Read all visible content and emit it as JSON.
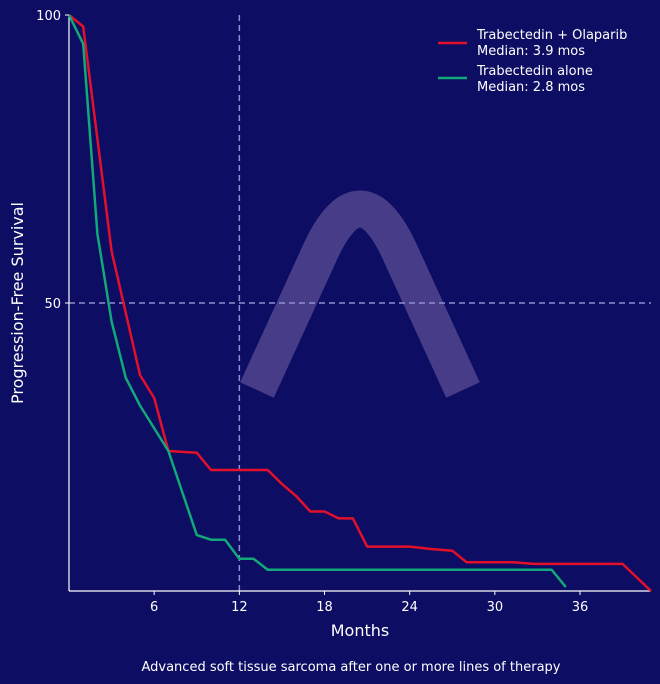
{
  "chart_data": {
    "type": "line",
    "title": "",
    "xlabel": "Months",
    "ylabel": "Progression-Free Survival",
    "caption": "Advanced soft tissue sarcoma after one or more lines of therapy",
    "xlim": [
      0,
      41
    ],
    "ylim": [
      0,
      100
    ],
    "xticks": [
      6,
      12,
      18,
      24,
      30,
      36
    ],
    "yticks": [
      50,
      100
    ],
    "grid": false,
    "reference_lines": {
      "x": 12,
      "y": 50
    },
    "legend_position": "top-right",
    "background": "#0c0d63",
    "series": [
      {
        "name": "Trabectedin + Olaparib",
        "median_label": "Median: 3.9 mos",
        "color": "#e3102b",
        "x": [
          0,
          1,
          3,
          5,
          6,
          7,
          9,
          10,
          14,
          15,
          16,
          17,
          18,
          19,
          20,
          21,
          24,
          25.5,
          27,
          28,
          31.3,
          32.7,
          39,
          41
        ],
        "y": [
          100,
          98,
          59,
          37.5,
          33.5,
          24.3,
          24,
          21,
          21,
          18.6,
          16.5,
          13.8,
          13.8,
          12.6,
          12.6,
          7.7,
          7.7,
          7.3,
          7,
          5,
          5,
          4.7,
          4.7,
          0
        ]
      },
      {
        "name": "Trabectedin alone",
        "median_label": "Median: 2.8 mos",
        "color": "#12a878",
        "x": [
          0,
          1,
          2,
          3,
          4,
          5,
          7,
          8,
          9,
          10,
          11,
          12,
          13,
          14,
          34,
          35
        ],
        "y": [
          100,
          95,
          62,
          46.8,
          37,
          32.2,
          24.3,
          17,
          9.7,
          8.9,
          8.9,
          5.6,
          5.6,
          3.7,
          3.7,
          0.7
        ]
      }
    ]
  }
}
